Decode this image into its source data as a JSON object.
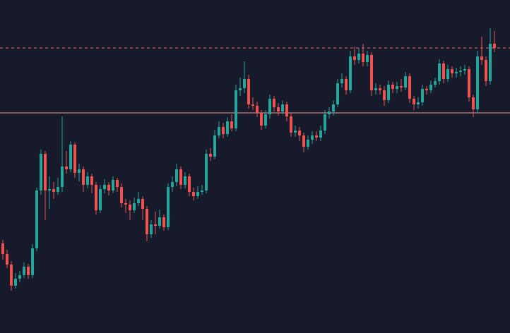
{
  "chart_data": {
    "type": "candlestick",
    "up_color": "#26a69a",
    "down_color": "#ef5350",
    "ylim": [
      0,
      472
    ],
    "price_lines": [
      {
        "value": 312,
        "style": "solid",
        "color": "#f3a293"
      },
      {
        "value": 404,
        "style": "dashed",
        "color": "#e5736d"
      }
    ],
    "open": [
      127,
      112,
      97,
      67,
      77,
      82,
      94,
      82,
      120,
      202,
      254,
      202,
      204,
      200,
      207,
      236,
      232,
      267,
      227,
      232,
      210,
      222,
      210,
      174,
      204,
      210,
      202,
      217,
      207,
      184,
      182,
      174,
      184,
      190,
      176,
      140,
      154,
      152,
      164,
      150,
      207,
      214,
      232,
      210,
      222,
      200,
      194,
      200,
      202,
      254,
      250,
      280,
      292,
      282,
      300,
      290,
      344,
      347,
      360,
      324,
      322,
      312,
      294,
      310,
      332,
      320,
      314,
      324,
      307,
      284,
      287,
      280,
      264,
      274,
      280,
      277,
      287,
      310,
      314,
      324,
      354,
      360,
      344,
      392,
      387,
      396,
      384,
      394,
      344,
      347,
      344,
      330,
      352,
      346,
      350,
      348,
      364,
      332,
      324,
      327,
      346,
      344,
      352,
      357,
      382,
      360,
      374,
      368,
      370,
      372,
      374,
      334,
      317,
      392,
      387,
      357,
      410
    ],
    "high": [
      132,
      118,
      102,
      85,
      88,
      100,
      98,
      126,
      206,
      260,
      258,
      222,
      214,
      220,
      307,
      258,
      272,
      270,
      240,
      236,
      228,
      226,
      214,
      210,
      218,
      214,
      222,
      220,
      212,
      190,
      188,
      192,
      200,
      194,
      180,
      160,
      172,
      175,
      168,
      212,
      222,
      240,
      236,
      228,
      226,
      206,
      208,
      210,
      260,
      262,
      288,
      300,
      298,
      306,
      310,
      352,
      362,
      385,
      366,
      334,
      328,
      316,
      316,
      338,
      336,
      326,
      330,
      328,
      312,
      294,
      292,
      284,
      280,
      286,
      286,
      294,
      316,
      320,
      330,
      360,
      368,
      364,
      400,
      406,
      404,
      410,
      400,
      398,
      354,
      352,
      350,
      358,
      356,
      356,
      360,
      370,
      368,
      336,
      334,
      352,
      350,
      358,
      362,
      388,
      386,
      380,
      378,
      376,
      378,
      380,
      378,
      338,
      400,
      420,
      392,
      432,
      428
    ],
    "low": [
      104,
      92,
      60,
      63,
      72,
      78,
      77,
      78,
      116,
      196,
      160,
      176,
      190,
      196,
      200,
      226,
      228,
      220,
      215,
      200,
      205,
      198,
      168,
      170,
      198,
      195,
      198,
      200,
      178,
      170,
      160,
      170,
      180,
      160,
      130,
      135,
      140,
      148,
      145,
      146,
      200,
      208,
      204,
      205,
      194,
      188,
      190,
      196,
      198,
      244,
      246,
      276,
      276,
      278,
      286,
      286,
      336,
      340,
      318,
      316,
      306,
      288,
      290,
      304,
      314,
      308,
      310,
      300,
      278,
      278,
      272,
      256,
      260,
      268,
      272,
      272,
      282,
      304,
      308,
      320,
      348,
      338,
      340,
      380,
      382,
      378,
      378,
      336,
      338,
      338,
      322,
      326,
      340,
      340,
      342,
      344,
      326,
      316,
      318,
      322,
      338,
      340,
      348,
      352,
      354,
      356,
      362,
      362,
      364,
      366,
      328,
      306,
      312,
      380,
      350,
      352,
      398
    ],
    "close": [
      112,
      97,
      67,
      77,
      82,
      94,
      82,
      120,
      202,
      254,
      202,
      204,
      200,
      207,
      236,
      232,
      267,
      227,
      232,
      210,
      222,
      210,
      174,
      204,
      210,
      202,
      217,
      207,
      184,
      182,
      174,
      184,
      190,
      176,
      140,
      154,
      152,
      164,
      150,
      207,
      214,
      232,
      210,
      222,
      200,
      194,
      200,
      202,
      254,
      250,
      280,
      292,
      282,
      300,
      290,
      344,
      347,
      360,
      324,
      322,
      312,
      294,
      310,
      332,
      320,
      314,
      324,
      307,
      284,
      287,
      280,
      264,
      274,
      280,
      277,
      287,
      310,
      314,
      324,
      354,
      360,
      344,
      392,
      387,
      396,
      384,
      394,
      344,
      347,
      344,
      330,
      352,
      346,
      350,
      348,
      364,
      332,
      324,
      327,
      346,
      344,
      352,
      357,
      382,
      360,
      374,
      368,
      370,
      372,
      374,
      334,
      317,
      392,
      387,
      357,
      410,
      404
    ]
  }
}
